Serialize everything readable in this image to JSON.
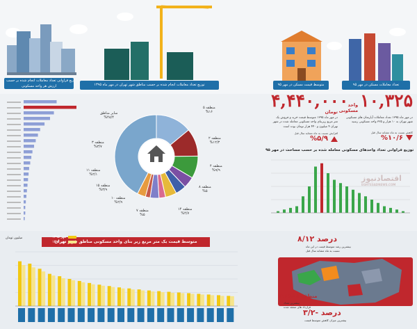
{
  "headers": {
    "buildings_banner": "توزیع فراوانی تعداد معاملات انجام شده بر حسب",
    "buildings_banner2": "ارزش هر واحد مسکونی",
    "construction_banner": "توزیع تعداد معاملات انجام شده بر حسب مناطق شهر تهران در مهر ماه ۱۳۹۵",
    "price_banner": "متوسط قیمت مسکن در مهر ۹۵",
    "count_banner": "تعداد معاملات مسکن در مهر ۹۵"
  },
  "stats": {
    "price": {
      "value": "۴,۴۴۰,۰۰۰",
      "unit": "تومان",
      "desc": "در مهر ماه ۱۳۹۵ متوسط قیمت خرید و فروش یک متر مربع زیربنای واحد مسکونی معامله شده در شهر تهران ۴ میلیون و ۴۴۰ هزار تومان بوده است",
      "change_label": "افزایش نسبت به ماه مشابه سال قبل",
      "change": "%۵/۹"
    },
    "count": {
      "value": "۱۰,۳۲۵",
      "unit": "واحد مسکونی",
      "desc": "در مهر ماه ۱۳۹۵ تعداد معاملات آپارتمان های مسکونی شهر تهران به ۱۰ هزار و ۳۲۵ واحد مسکونی رسید",
      "change_label": "کاهش نسبت به ماه مشابه سال قبل",
      "change": "%۱۰/۶"
    }
  },
  "donut_labels": {
    "other": "سایر مناطق",
    "other_pct": "%۴۸/۴",
    "z5": "منطقه ۵",
    "z5_pct": "%۱۶",
    "z2": "منطقه ۲",
    "z2_pct": "%۱۲/۳",
    "z4": "منطقه ۴",
    "z4_pct": "%۹/۹",
    "z8": "منطقه ۸",
    "z8_pct": "%۵",
    "z14": "منطقه ۱۴",
    "z14_pct": "%۴/۷",
    "z7": "منطقه ۷",
    "z7_pct": "%۵",
    "z10": "منطقه ۱۰",
    "z10_pct": "%۲/۹",
    "z15": "منطقه ۱۵",
    "z15_pct": "%۳/۹",
    "z11": "منطقه ۱۱",
    "z11_pct": "%۲/۱",
    "z3": "منطقه ۳",
    "z3_pct": "%۳/۷"
  },
  "histogram_title": "توزیع فراوانی تعداد واحدهای مسکونی معامله شده بر حسب مساحت در مهر ۹۵",
  "watermark": "اقتصادنیوز",
  "watermark_sub": "EGHTESADNEWS.COM",
  "bottom": {
    "title": "متوسط قیمت یک متر مربع زیر بنای واحد مسکونی مناطق شهر تهران",
    "legend_1395": "مهر ۱۳۹۵",
    "legend_1394": "مهر ۱۳۹۴",
    "ylabel": "میلیون تومان",
    "inc_value": "درصد ۸/۱۲",
    "inc_desc": "بیشترین رشد متوسط قیمت در این ماه",
    "inc_desc2": "نسبت به ماه مشابه سال قبل",
    "dec_value": "درصد -۳/۲",
    "dec_desc": "بیشترین میزان کاهش متوسط قیمت",
    "zone_highlight": "منطقه ۵ (%۱۶)",
    "zone_desc": "بیشترین تعداد",
    "zone_desc2": "قرارداد های منعقد شده"
  },
  "colors": {
    "red": "#c0272d",
    "blue": "#1f6fa8",
    "green": "#3aa64a",
    "yellow": "#f2c811",
    "pale_yellow": "#f7e58a",
    "hbar": "#8e9fd6"
  },
  "chart_data": [
    {
      "type": "pie",
      "subtype": "donut",
      "categories": [
        "منطقه ۵",
        "منطقه ۲",
        "منطقه ۴",
        "منطقه ۸",
        "منطقه ۱۴",
        "منطقه ۷",
        "منطقه ۱۰",
        "منطقه ۱۵",
        "منطقه ۱۱",
        "منطقه ۳",
        "سایر مناطق"
      ],
      "values": [
        16,
        12.3,
        9.9,
        5,
        4.7,
        5,
        2.9,
        3.9,
        2.1,
        3.7,
        48.4
      ],
      "colors": [
        "#8fb3d9",
        "#9c2a2a",
        "#3c9a3c",
        "#7b4fa3",
        "#3f5fa8",
        "#e6b93a",
        "#d96a8f",
        "#7f7fc9",
        "#c55a4a",
        "#e79b3f",
        "#7aa6cc"
      ]
    },
    {
      "type": "bar",
      "orientation": "horizontal",
      "values": [
        60,
        96,
        55,
        48,
        38,
        30,
        26,
        22,
        19,
        16,
        14,
        12,
        10,
        9,
        8,
        7,
        6,
        5,
        4,
        3,
        3,
        2
      ],
      "highlight_index": 1
    },
    {
      "type": "bar",
      "ylim": [
        0,
        16
      ],
      "values": [
        0.5,
        1,
        1.5,
        2,
        5,
        8,
        14,
        15,
        12,
        10,
        9,
        8,
        7,
        6,
        5,
        4,
        3,
        2,
        1.5,
        1,
        0.5
      ],
      "highlight_index": 7
    },
    {
      "type": "bar",
      "ylabel": "میلیون تومان",
      "ylim": [
        0,
        16
      ],
      "series": [
        {
          "name": "مهر ۱۳۹۵",
          "values": [
            13.2,
            12.5,
            11.0,
            9.5,
            8.8,
            8.0,
            7.4,
            6.8,
            6.3,
            5.9,
            5.5,
            5.2,
            4.9,
            4.6,
            4.4,
            4.2,
            4.0,
            3.8,
            3.6,
            3.4,
            3.2,
            3.0
          ]
        },
        {
          "name": "مهر ۱۳۹۴",
          "values": [
            12.1,
            11.4,
            10.2,
            9.0,
            8.2,
            7.6,
            7.0,
            6.4,
            6.0,
            5.6,
            5.2,
            4.9,
            4.6,
            4.3,
            4.1,
            3.9,
            3.8,
            3.6,
            3.4,
            3.2,
            3.0,
            2.9
          ]
        }
      ]
    }
  ]
}
